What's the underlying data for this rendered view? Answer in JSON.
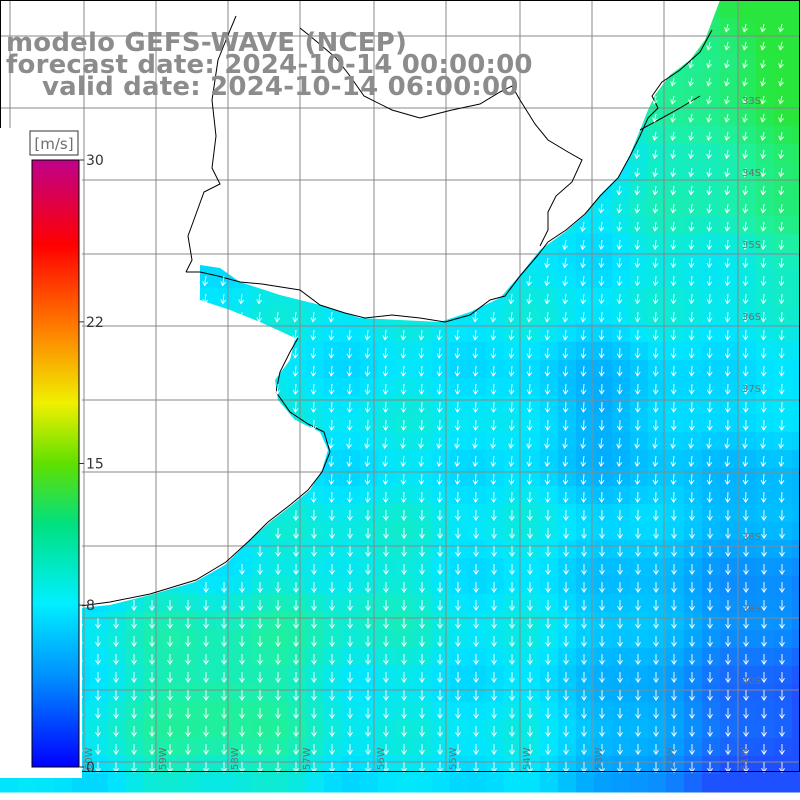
{
  "title": {
    "model": "modelo GEFS-WAVE (NCEP)",
    "forecast": "forecast date: 2024-10-14 00:00:00",
    "valid": "valid date: 2024-10-14 06:00:00"
  },
  "colorbar": {
    "unit": "[m/s]",
    "tick_labels": [
      "30",
      "22",
      "15",
      "8",
      "0"
    ],
    "tick_values": [
      30,
      22,
      15,
      8,
      0
    ],
    "vmin": 0,
    "vmax": 30
  },
  "map": {
    "lat_labels": [
      "33S",
      "34S",
      "35S",
      "36S",
      "37S",
      "38S",
      "39S",
      "40S"
    ],
    "lon_labels": [
      "60W",
      "59W",
      "58W",
      "57W",
      "56W",
      "55W",
      "54W",
      "53W",
      "52W",
      "51W"
    ],
    "land_color": "#ffffff",
    "coast_color": "#000000",
    "grid_color": "#888888",
    "arrow_color": "#ffffff"
  },
  "colors": {
    "title": "#8c8c8c",
    "ocean_low": "#1a5cff",
    "ocean_mid": "#00d8ff",
    "ocean_high": "#22ee66"
  }
}
